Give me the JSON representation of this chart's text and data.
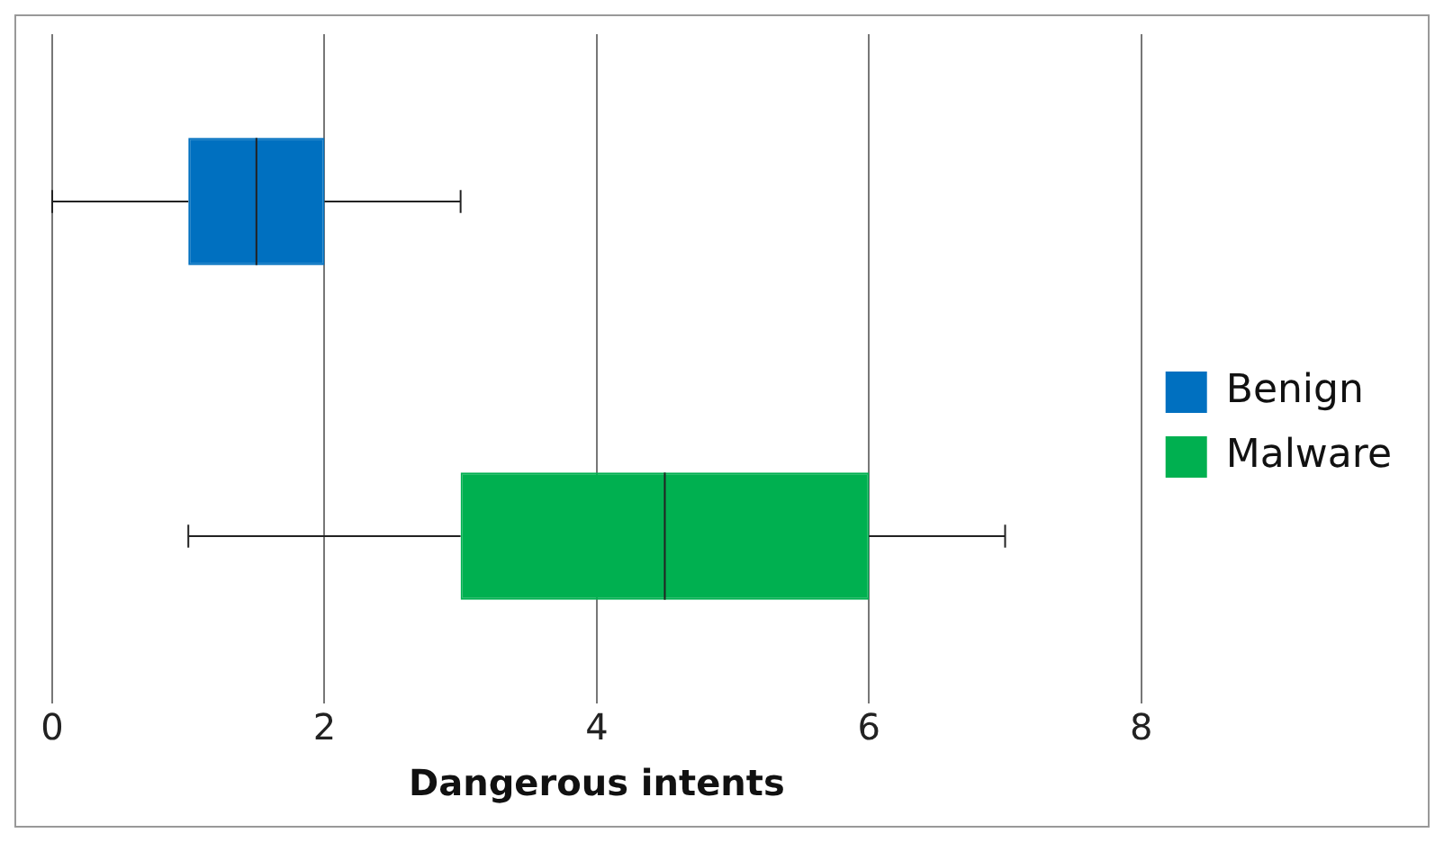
{
  "chart_data": {
    "type": "box",
    "orientation": "horizontal",
    "xlabel": "Dangerous intents",
    "categories": [
      null,
      null
    ],
    "series": [
      {
        "name": "Benign",
        "color": "#0070c0",
        "boxes": [
          {
            "low": 0,
            "q1": 1,
            "median": 1.5,
            "q3": 2,
            "high": 3
          },
          null
        ]
      },
      {
        "name": "Malware",
        "color": "#00b050",
        "boxes": [
          null,
          {
            "low": 1,
            "q1": 3,
            "median": 4.5,
            "q3": 6,
            "high": 7
          }
        ]
      }
    ],
    "xlim": [
      0,
      8
    ],
    "xticks": [
      0,
      2,
      4,
      6,
      8
    ],
    "grid": "x",
    "legend": "right"
  }
}
